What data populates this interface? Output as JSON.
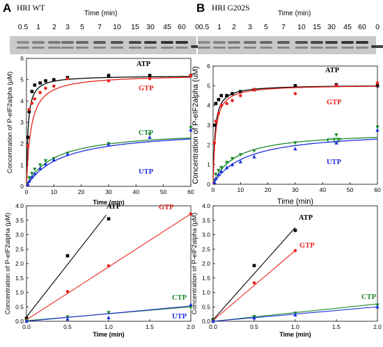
{
  "panels": [
    {
      "letter": "A",
      "title": "HRI WT",
      "gel": {
        "time_title": "Time (min)",
        "lanes": [
          "0.5",
          "1",
          "2",
          "3",
          "5",
          "7",
          "10",
          "15",
          "30",
          "45",
          "60",
          "0"
        ]
      }
    },
    {
      "letter": "B",
      "title": "HRI G202S",
      "gel": {
        "time_title": "Time (min)",
        "lanes": [
          "0.5",
          "1",
          "2",
          "3",
          "5",
          "7",
          "10",
          "15",
          "30",
          "45",
          "60",
          "0"
        ]
      }
    }
  ],
  "colors": {
    "ATP": "#000000",
    "GTP": "#e8231f",
    "CTP": "#1a8a2a",
    "UTP": "#1f2ee0"
  },
  "chart_data": [
    {
      "id": "A-top",
      "type": "scatter",
      "xlabel": "Time (min)",
      "ylabel": "Concentration of P-eIF2alpha (μM)",
      "xlim": [
        0,
        60
      ],
      "ylim": [
        0,
        6
      ],
      "xticks": [
        0,
        10,
        20,
        30,
        40,
        50,
        60
      ],
      "yticks": [
        0,
        1,
        2,
        3,
        4,
        5,
        6
      ],
      "series": [
        {
          "name": "ATP",
          "x": [
            0.5,
            1,
            2,
            3,
            5,
            7,
            10,
            15,
            30,
            45,
            60
          ],
          "y": [
            2.3,
            3.5,
            4.45,
            4.75,
            4.85,
            4.95,
            5.0,
            5.1,
            5.2,
            5.2,
            5.2
          ],
          "fit": {
            "vmax": 5.2,
            "k": 0.55
          }
        },
        {
          "name": "GTP",
          "x": [
            0.5,
            1,
            2,
            3,
            5,
            7,
            10,
            15,
            30,
            45,
            60
          ],
          "y": [
            1.9,
            3.6,
            3.9,
            4.1,
            4.4,
            4.6,
            4.7,
            5.05,
            4.95,
            5.05,
            5.2
          ],
          "fit": {
            "vmax": 5.25,
            "k": 1.6
          }
        },
        {
          "name": "CTP",
          "x": [
            0.5,
            1,
            2,
            3,
            5,
            7,
            10,
            15,
            30,
            45,
            60
          ],
          "y": [
            0.15,
            0.4,
            0.6,
            0.8,
            1.0,
            1.2,
            1.3,
            1.55,
            2.0,
            2.45,
            2.75
          ],
          "fit": {
            "vmax": 2.65,
            "k": 10
          }
        },
        {
          "name": "UTP",
          "x": [
            0.5,
            1,
            2,
            3,
            5,
            7,
            10,
            15,
            30,
            45,
            60
          ],
          "y": [
            0.1,
            0.25,
            0.45,
            0.6,
            0.85,
            1.05,
            1.25,
            1.5,
            1.95,
            2.3,
            2.65
          ],
          "fit": {
            "vmax": 2.7,
            "k": 13
          }
        }
      ]
    },
    {
      "id": "B-top",
      "type": "scatter",
      "xlabel": "Time (min)",
      "ylabel": "Concentration of P-eIF2alpha (uM)",
      "xlim": [
        0,
        60
      ],
      "ylim": [
        0,
        6
      ],
      "xticks": [
        0,
        10,
        20,
        30,
        40,
        50,
        60
      ],
      "yticks": [
        0,
        1,
        2,
        3,
        4,
        5,
        6
      ],
      "series": [
        {
          "name": "ATP",
          "x": [
            0.5,
            1,
            2,
            3,
            5,
            7,
            10,
            15,
            30,
            45,
            60
          ],
          "y": [
            3.0,
            4.1,
            4.3,
            4.5,
            4.5,
            4.6,
            4.7,
            4.8,
            5.0,
            5.05,
            5.0
          ],
          "fit": {
            "vmax": 5.05,
            "k": 0.7
          }
        },
        {
          "name": "GTP",
          "x": [
            0.5,
            1,
            2,
            3,
            5,
            7,
            10,
            15,
            30,
            45,
            60
          ],
          "y": [
            2.1,
            3.2,
            3.6,
            4.0,
            4.1,
            4.25,
            4.5,
            4.8,
            4.6,
            5.0,
            5.15
          ],
          "fit": {
            "vmax": 5.05,
            "k": 0.9
          }
        },
        {
          "name": "CTP",
          "x": [
            0.5,
            1,
            2,
            3,
            5,
            7,
            10,
            15,
            30,
            45,
            60
          ],
          "y": [
            0.2,
            0.5,
            0.7,
            0.85,
            1.1,
            1.3,
            1.5,
            1.7,
            2.1,
            2.5,
            2.9
          ],
          "fit": {
            "vmax": 2.7,
            "k": 8
          }
        },
        {
          "name": "UTP",
          "x": [
            0.5,
            1,
            2,
            3,
            5,
            7,
            10,
            15,
            30,
            45,
            60
          ],
          "y": [
            0.1,
            0.3,
            0.5,
            0.65,
            0.85,
            1.0,
            1.15,
            1.4,
            1.8,
            2.1,
            2.75
          ],
          "fit": {
            "vmax": 2.75,
            "k": 12
          }
        }
      ]
    },
    {
      "id": "A-bottom",
      "type": "line",
      "xlabel": "Time (min)",
      "ylabel": "Concentration of P-eIF2alpha (μM)",
      "xlim": [
        0,
        2.0
      ],
      "ylim": [
        0,
        4.0
      ],
      "xticks": [
        0.0,
        0.5,
        1.0,
        1.5,
        2.0
      ],
      "yticks": [
        0.0,
        0.5,
        1.0,
        1.5,
        2.0,
        2.5,
        3.0,
        3.5,
        4.0
      ],
      "series": [
        {
          "name": "ATP",
          "x": [
            0,
            0.5,
            1.0
          ],
          "y": [
            0.1,
            2.27,
            3.55
          ],
          "fit": [
            [
              0,
              0.15
            ],
            [
              0.97,
              3.68
            ]
          ]
        },
        {
          "name": "GTP",
          "x": [
            0,
            0.5,
            1.0,
            2.0
          ],
          "y": [
            0.05,
            1.03,
            1.92,
            3.72
          ],
          "fit": [
            [
              0,
              0.05
            ],
            [
              2.0,
              3.72
            ]
          ]
        },
        {
          "name": "CTP",
          "x": [
            0,
            0.5,
            1.0,
            2.0
          ],
          "y": [
            0.02,
            0.15,
            0.3,
            0.48
          ],
          "fit": [
            [
              0,
              0.02
            ],
            [
              2.0,
              0.5
            ]
          ]
        },
        {
          "name": "UTP",
          "x": [
            0,
            0.5,
            1.0,
            2.0
          ],
          "y": [
            0.0,
            0.08,
            0.13,
            0.58
          ],
          "fit": [
            [
              0,
              0.0
            ],
            [
              2.0,
              0.53
            ]
          ]
        }
      ]
    },
    {
      "id": "B-bottom",
      "type": "line",
      "xlabel": "Time (min)",
      "ylabel": "Concentration of P-eIF2alpha (μM)",
      "xlim": [
        0,
        2.0
      ],
      "ylim": [
        0,
        4.0
      ],
      "xticks": [
        0.0,
        0.5,
        1.0,
        1.5,
        2.0
      ],
      "yticks": [
        0.0,
        0.5,
        1.0,
        1.5,
        2.0,
        2.5,
        3.0,
        3.5,
        4.0
      ],
      "series": [
        {
          "name": "ATP",
          "x": [
            0,
            0.5,
            1.0
          ],
          "y": [
            0.05,
            1.93,
            3.15
          ],
          "fit": [
            [
              0,
              0.05
            ],
            [
              1.0,
              3.25
            ]
          ]
        },
        {
          "name": "GTP",
          "x": [
            0,
            0.5,
            1.0
          ],
          "y": [
            0.03,
            1.33,
            2.45
          ],
          "fit": [
            [
              0,
              0.03
            ],
            [
              1.0,
              2.45
            ]
          ]
        },
        {
          "name": "CTP",
          "x": [
            0,
            0.5,
            1.0,
            2.0
          ],
          "y": [
            0.02,
            0.16,
            0.28,
            0.56
          ],
          "fit": [
            [
              0,
              0.0
            ],
            [
              2.0,
              0.6
            ]
          ]
        },
        {
          "name": "UTP",
          "x": [
            0,
            0.5,
            1.0,
            2.0
          ],
          "y": [
            0.0,
            0.12,
            0.22,
            0.5
          ],
          "fit": [
            [
              0,
              0.0
            ],
            [
              2.0,
              0.5
            ]
          ]
        }
      ]
    }
  ]
}
